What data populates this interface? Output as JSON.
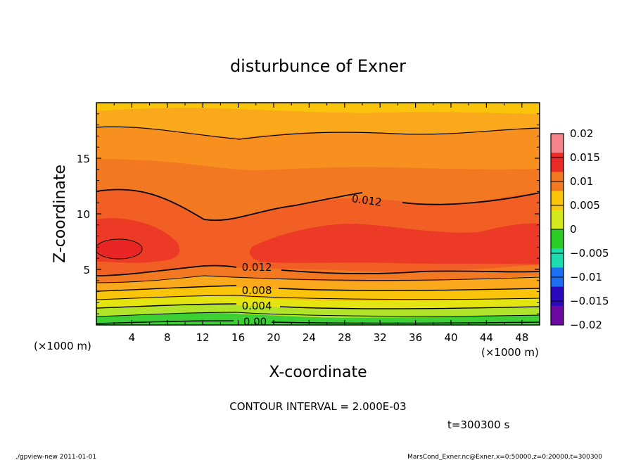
{
  "chart_data": {
    "type": "contour",
    "title": "disturbunce of Exner",
    "xlabel": "X-coordinate",
    "ylabel": "Z-coordinate",
    "x_unit": "(×1000 m)",
    "z_unit": "(×1000 m)",
    "xlim": [
      0,
      50
    ],
    "ylim": [
      0,
      20
    ],
    "xticks": [
      "4",
      "8",
      "12",
      "16",
      "20",
      "24",
      "28",
      "32",
      "36",
      "40",
      "44",
      "48"
    ],
    "yticks": [
      "5",
      "10",
      "15"
    ],
    "colorbar": {
      "ticks": [
        "0.02",
        "0.015",
        "0.01",
        "0.005",
        "0",
        "−0.005",
        "−0.01",
        "−0.015",
        "−0.02"
      ],
      "colors": [
        "#f6828c",
        "#ec2a28",
        "#f37822",
        "#f9c40a",
        "#d2ea1c",
        "#28cc22",
        "#1cdcb0",
        "#1f6ff4",
        "#2a08bc",
        "#6d0aa4"
      ]
    },
    "contour_labels": [
      {
        "text": "0.012",
        "x": 30.5,
        "z": 11.2
      },
      {
        "text": "0.012",
        "x": 18.1,
        "z": 5.2
      },
      {
        "text": "0.008",
        "x": 18.1,
        "z": 3.1
      },
      {
        "text": "0.004",
        "x": 18.1,
        "z": 1.7
      },
      {
        "text": "0.00",
        "x": 17.9,
        "z": 0.3
      }
    ],
    "contour_interval_text": "CONTOUR INTERVAL = 2.000E-03",
    "time_text": "t=300300 s"
  },
  "footer": {
    "left": "./gpview-new   2011-01-01",
    "right": "MarsCond_Exner.nc@Exner,x=0:50000,z=0:20000,t=300300"
  }
}
